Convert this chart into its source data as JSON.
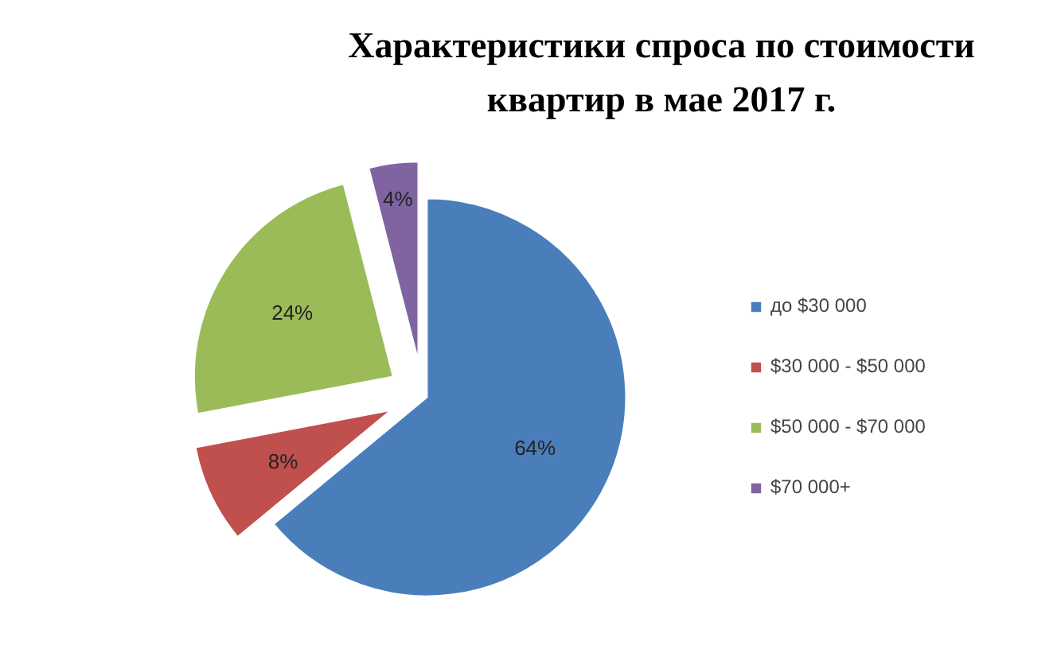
{
  "chart_data": {
    "type": "pie",
    "title": "Характеристики спроса по стоимости квартир в мае 2017 г.",
    "categories": [
      "до $30 000",
      "$30 000 - $50 000",
      "$50 000 - $70 000",
      "$70 000+"
    ],
    "values": [
      64,
      8,
      24,
      4
    ],
    "colors": [
      "#4a7ebb",
      "#c0504d",
      "#9bbb59",
      "#8064a2"
    ],
    "value_labels": [
      "64%",
      "8%",
      "24%",
      "4%"
    ],
    "legend": "right"
  }
}
